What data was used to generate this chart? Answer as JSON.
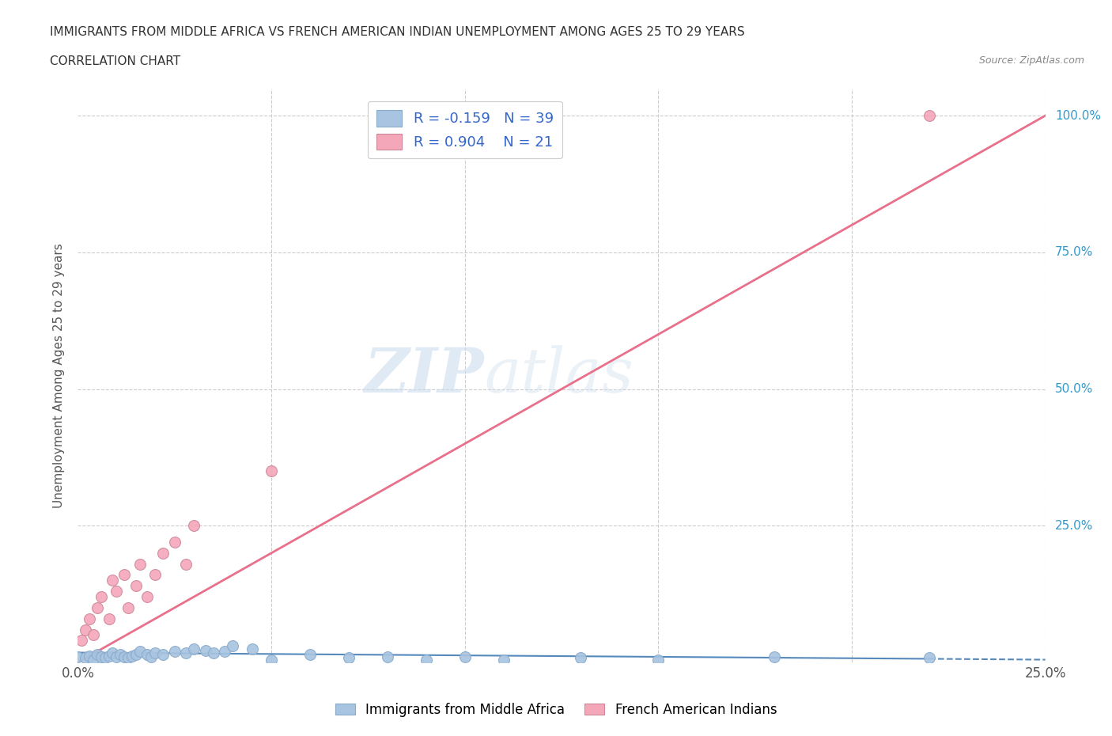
{
  "title_line1": "IMMIGRANTS FROM MIDDLE AFRICA VS FRENCH AMERICAN INDIAN UNEMPLOYMENT AMONG AGES 25 TO 29 YEARS",
  "title_line2": "CORRELATION CHART",
  "source_text": "Source: ZipAtlas.com",
  "ylabel": "Unemployment Among Ages 25 to 29 years",
  "xlim": [
    0.0,
    0.25
  ],
  "ylim": [
    0.0,
    1.05
  ],
  "x_ticks": [
    0.0,
    0.05,
    0.1,
    0.15,
    0.2,
    0.25
  ],
  "y_ticks": [
    0.0,
    0.25,
    0.5,
    0.75,
    1.0
  ],
  "blue_R": -0.159,
  "blue_N": 39,
  "pink_R": 0.904,
  "pink_N": 21,
  "blue_color": "#a8c4e0",
  "pink_color": "#f4a7b9",
  "blue_line_color": "#5588bb",
  "pink_line_color": "#e8708a",
  "legend_R_color": "#3366cc",
  "watermark_zip": "ZIP",
  "watermark_atlas": "atlas",
  "blue_scatter_x": [
    0.0,
    0.002,
    0.003,
    0.004,
    0.005,
    0.006,
    0.007,
    0.008,
    0.009,
    0.01,
    0.011,
    0.012,
    0.013,
    0.014,
    0.015,
    0.016,
    0.018,
    0.019,
    0.02,
    0.022,
    0.025,
    0.028,
    0.03,
    0.033,
    0.035,
    0.038,
    0.04,
    0.045,
    0.05,
    0.06,
    0.07,
    0.08,
    0.09,
    0.1,
    0.11,
    0.13,
    0.15,
    0.18,
    0.22
  ],
  "blue_scatter_y": [
    0.01,
    0.008,
    0.012,
    0.005,
    0.015,
    0.01,
    0.008,
    0.012,
    0.018,
    0.01,
    0.015,
    0.01,
    0.008,
    0.012,
    0.015,
    0.02,
    0.015,
    0.01,
    0.018,
    0.015,
    0.02,
    0.018,
    0.025,
    0.022,
    0.018,
    0.02,
    0.03,
    0.025,
    0.005,
    0.015,
    0.008,
    0.01,
    0.005,
    0.01,
    0.005,
    0.008,
    0.005,
    0.01,
    0.008
  ],
  "pink_scatter_x": [
    0.001,
    0.002,
    0.003,
    0.004,
    0.005,
    0.006,
    0.008,
    0.009,
    0.01,
    0.012,
    0.013,
    0.015,
    0.016,
    0.018,
    0.02,
    0.022,
    0.025,
    0.028,
    0.03,
    0.05,
    0.22
  ],
  "pink_scatter_y": [
    0.04,
    0.06,
    0.08,
    0.05,
    0.1,
    0.12,
    0.08,
    0.15,
    0.13,
    0.16,
    0.1,
    0.14,
    0.18,
    0.12,
    0.16,
    0.2,
    0.22,
    0.18,
    0.25,
    0.35,
    1.0
  ],
  "pink_line_x0": 0.0,
  "pink_line_y0": 0.0,
  "pink_line_x1": 0.25,
  "pink_line_y1": 1.0,
  "blue_line_x0": 0.0,
  "blue_line_y0": 0.018,
  "blue_line_x1": 0.25,
  "blue_line_y1": 0.005
}
